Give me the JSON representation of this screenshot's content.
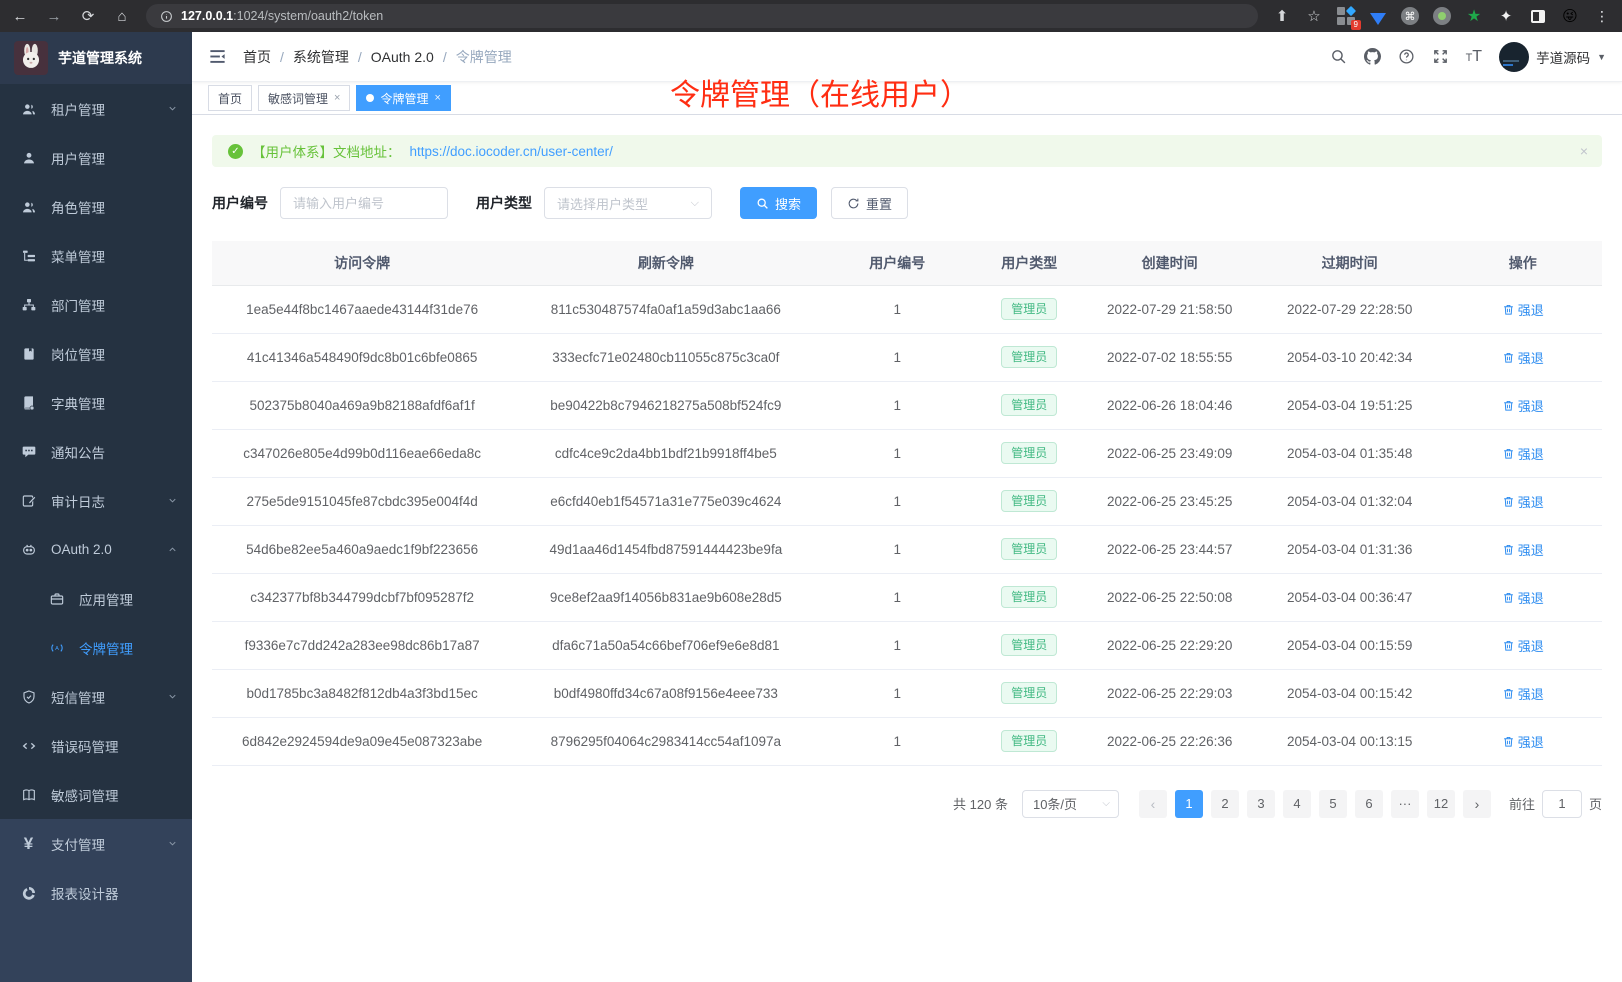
{
  "colors": {
    "accent": "#409eff",
    "success_text": "#42b983",
    "alert_green": "#67c23a",
    "annotation_red": "#ff2d12",
    "sidebar_bg": "#33425a",
    "sidebar_submenu_bg": "#253241"
  },
  "browser": {
    "url_host": "127.0.0.1",
    "url_path": ":1024/system/oauth2/token",
    "extension_badge": "9",
    "glyphs": {
      "back": "←",
      "forward": "→",
      "reload": "⟳",
      "home": "⌂",
      "share": "⬆",
      "star": "☆",
      "command": "⌘",
      "green_star": "★",
      "white_star": "✦",
      "emoji": "😜",
      "more": "⋮"
    }
  },
  "sidebar": {
    "logo_title": "芋道管理系统",
    "menu": [
      {
        "key": "tenant",
        "label": "租户管理",
        "icon": "people",
        "arrow": "down",
        "section": "dark"
      },
      {
        "key": "user",
        "label": "用户管理",
        "icon": "person",
        "arrow": null,
        "section": "dark"
      },
      {
        "key": "role",
        "label": "角色管理",
        "icon": "people",
        "arrow": null,
        "section": "dark"
      },
      {
        "key": "menu",
        "label": "菜单管理",
        "icon": "tree",
        "arrow": null,
        "section": "dark"
      },
      {
        "key": "dept",
        "label": "部门管理",
        "icon": "org",
        "arrow": null,
        "section": "dark"
      },
      {
        "key": "post",
        "label": "岗位管理",
        "icon": "badge",
        "arrow": null,
        "section": "dark"
      },
      {
        "key": "dict",
        "label": "字典管理",
        "icon": "dict",
        "arrow": null,
        "section": "dark"
      },
      {
        "key": "notice",
        "label": "通知公告",
        "icon": "chat",
        "arrow": null,
        "section": "dark"
      },
      {
        "key": "audit-log",
        "label": "审计日志",
        "icon": "edit",
        "arrow": "down",
        "section": "dark"
      },
      {
        "key": "oauth2",
        "label": "OAuth 2.0",
        "icon": "robot",
        "arrow": "up",
        "section": "dark"
      },
      {
        "key": "oauth2-app",
        "label": "应用管理",
        "icon": "briefcase",
        "arrow": null,
        "section": "dark",
        "indent": true
      },
      {
        "key": "oauth2-token",
        "label": "令牌管理",
        "icon": "signal",
        "arrow": null,
        "section": "dark",
        "indent": true,
        "active": true
      },
      {
        "key": "sms",
        "label": "短信管理",
        "icon": "shield",
        "arrow": "down",
        "section": "dark"
      },
      {
        "key": "error-code",
        "label": "错误码管理",
        "icon": "code",
        "arrow": null,
        "section": "dark"
      },
      {
        "key": "sensitive",
        "label": "敏感词管理",
        "icon": "openbook",
        "arrow": null,
        "section": "dark"
      },
      {
        "key": "pay",
        "label": "支付管理",
        "icon": "yen",
        "arrow": "down",
        "section": "light"
      },
      {
        "key": "report",
        "label": "报表设计器",
        "icon": "report",
        "arrow": null,
        "section": "light"
      }
    ]
  },
  "header": {
    "breadcrumb": [
      "首页",
      "系统管理",
      "OAuth 2.0",
      "令牌管理"
    ],
    "username": "芋道源码"
  },
  "tabs": [
    {
      "key": "home",
      "label": "首页",
      "closable": false,
      "active": false
    },
    {
      "key": "sensitive-words",
      "label": "敏感词管理",
      "closable": true,
      "active": false
    },
    {
      "key": "token",
      "label": "令牌管理",
      "closable": true,
      "active": true
    }
  ],
  "annotation": "令牌管理（在线用户）",
  "alert": {
    "text": "【用户体系】文档地址：",
    "link": "https://doc.iocoder.cn/user-center/"
  },
  "filters": {
    "user_id_label": "用户编号",
    "user_id_placeholder": "请输入用户编号",
    "user_type_label": "用户类型",
    "user_type_placeholder": "请选择用户类型",
    "search_label": "搜索",
    "reset_label": "重置"
  },
  "table": {
    "columns": [
      "访问令牌",
      "刷新令牌",
      "用户编号",
      "用户类型",
      "创建时间",
      "过期时间",
      "操作"
    ],
    "action_label": "强退",
    "rows": [
      {
        "access": "1ea5e44f8bc1467aaede43144f31de76",
        "refresh": "811c530487574fa0af1a59d3abc1aa66",
        "user_id": "1",
        "user_type": "管理员",
        "created": "2022-07-29 21:58:50",
        "expires": "2022-07-29 22:28:50"
      },
      {
        "access": "41c41346a548490f9dc8b01c6bfe0865",
        "refresh": "333ecfc71e02480cb11055c875c3ca0f",
        "user_id": "1",
        "user_type": "管理员",
        "created": "2022-07-02 18:55:55",
        "expires": "2054-03-10 20:42:34"
      },
      {
        "access": "502375b8040a469a9b82188afdf6af1f",
        "refresh": "be90422b8c7946218275a508bf524fc9",
        "user_id": "1",
        "user_type": "管理员",
        "created": "2022-06-26 18:04:46",
        "expires": "2054-03-04 19:51:25"
      },
      {
        "access": "c347026e805e4d99b0d116eae66eda8c",
        "refresh": "cdfc4ce9c2da4bb1bdf21b9918ff4be5",
        "user_id": "1",
        "user_type": "管理员",
        "created": "2022-06-25 23:49:09",
        "expires": "2054-03-04 01:35:48"
      },
      {
        "access": "275e5de9151045fe87cbdc395e004f4d",
        "refresh": "e6cfd40eb1f54571a31e775e039c4624",
        "user_id": "1",
        "user_type": "管理员",
        "created": "2022-06-25 23:45:25",
        "expires": "2054-03-04 01:32:04"
      },
      {
        "access": "54d6be82ee5a460a9aedc1f9bf223656",
        "refresh": "49d1aa46d1454fbd87591444423be9fa",
        "user_id": "1",
        "user_type": "管理员",
        "created": "2022-06-25 23:44:57",
        "expires": "2054-03-04 01:31:36"
      },
      {
        "access": "c342377bf8b344799dcbf7bf095287f2",
        "refresh": "9ce8ef2aa9f14056b831ae9b608e28d5",
        "user_id": "1",
        "user_type": "管理员",
        "created": "2022-06-25 22:50:08",
        "expires": "2054-03-04 00:36:47"
      },
      {
        "access": "f9336e7c7dd242a283ee98dc86b17a87",
        "refresh": "dfa6c71a50a54c66bef706ef9e6e8d81",
        "user_id": "1",
        "user_type": "管理员",
        "created": "2022-06-25 22:29:20",
        "expires": "2054-03-04 00:15:59"
      },
      {
        "access": "b0d1785bc3a8482f812db4a3f3bd15ec",
        "refresh": "b0df4980ffd34c67a08f9156e4eee733",
        "user_id": "1",
        "user_type": "管理员",
        "created": "2022-06-25 22:29:03",
        "expires": "2054-03-04 00:15:42"
      },
      {
        "access": "6d842e2924594de9a09e45e087323abe",
        "refresh": "8796295f04064c2983414cc54af1097a",
        "user_id": "1",
        "user_type": "管理员",
        "created": "2022-06-25 22:26:36",
        "expires": "2054-03-04 00:13:15"
      }
    ]
  },
  "pagination": {
    "total": "共 120 条",
    "page_size": "10条/页",
    "prev": "‹",
    "next": "›",
    "pages": [
      {
        "label": "1",
        "active": true
      },
      {
        "label": "2"
      },
      {
        "label": "3"
      },
      {
        "label": "4"
      },
      {
        "label": "5"
      },
      {
        "label": "6"
      },
      {
        "label": "···",
        "more": true
      },
      {
        "label": "12"
      }
    ],
    "goto_label": "前往",
    "goto_value": "1",
    "goto_suffix": "页"
  }
}
